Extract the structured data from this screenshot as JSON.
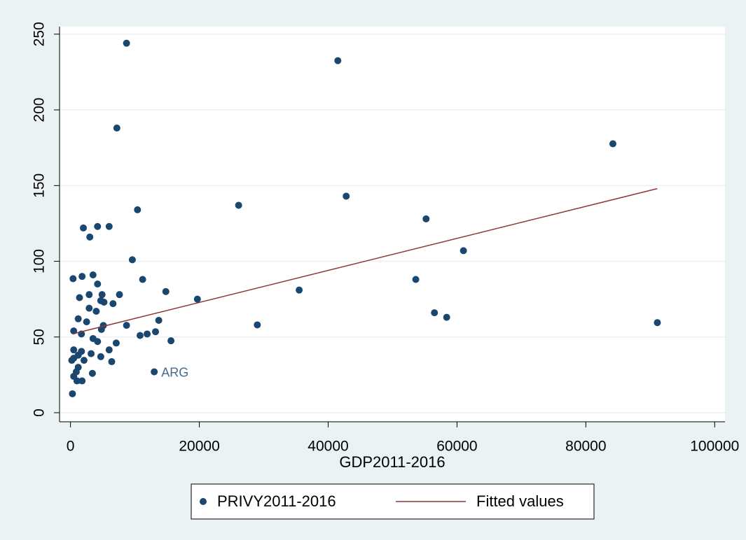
{
  "chart_data": {
    "type": "scatter",
    "x_label": "GDP2011-2016",
    "xlim": [
      -1700,
      101600
    ],
    "ylim": [
      -6,
      255
    ],
    "xticks": [
      0,
      20000,
      40000,
      60000,
      80000,
      100000
    ],
    "yticks": [
      0,
      50,
      100,
      150,
      200,
      250
    ],
    "grid": true,
    "legend": "bottom",
    "series": [
      {
        "name": "PRIVY2011-2016",
        "type": "scatter",
        "color": "#1a476f",
        "x": [
          8700,
          41500,
          7200,
          84200,
          42800,
          26100,
          10400,
          55200,
          2000,
          4200,
          6000,
          3000,
          61000,
          9600,
          11200,
          53600,
          35500,
          14800,
          7600,
          19700,
          56500,
          58400,
          29000,
          91100,
          15600,
          13000,
          8700,
          13700,
          13200,
          11900,
          10800,
          6600,
          400,
          1800,
          3500,
          4200,
          4900,
          2900,
          1400,
          2900,
          4000,
          1200,
          2500,
          4800,
          500,
          1700,
          3500,
          4200,
          7100,
          6000,
          500,
          1700,
          3200,
          4700,
          500,
          2100,
          6400,
          1200,
          3400,
          500,
          1000,
          1800,
          300,
          5100,
          5200,
          4700,
          1200,
          200,
          900
        ],
        "values": [
          244,
          232.5,
          188,
          177.6,
          143,
          137,
          134,
          128,
          122,
          123,
          123,
          116,
          107,
          101,
          88,
          88,
          81,
          80,
          78,
          75,
          66,
          63,
          58,
          59.5,
          47.5,
          27,
          57.7,
          61,
          53.5,
          52,
          51,
          72,
          88.5,
          90,
          91,
          85,
          78,
          78,
          76,
          69,
          67,
          62,
          60,
          55,
          54,
          52,
          49,
          47,
          46,
          41.5,
          41.5,
          40.5,
          39,
          37,
          36,
          34.6,
          33.7,
          30,
          26,
          24,
          21,
          21,
          12.5,
          57.6,
          73,
          74,
          38,
          34.6,
          27
        ]
      },
      {
        "name": "Fitted values",
        "type": "line",
        "color": "#90353b",
        "x": [
          300,
          91100
        ],
        "values": [
          52,
          148
        ]
      }
    ],
    "annotations": [
      {
        "text": "ARG",
        "x": 13000,
        "y": 27
      }
    ]
  }
}
